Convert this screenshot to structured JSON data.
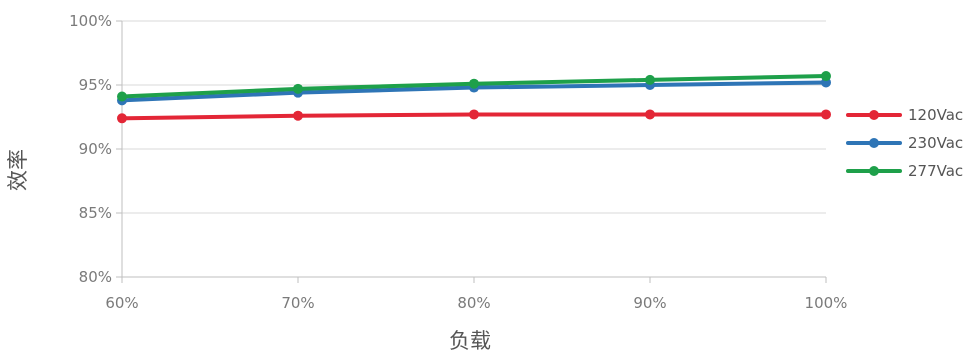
{
  "chart_data": {
    "type": "line",
    "title": "",
    "xlabel": "负载",
    "ylabel": "效率",
    "x": [
      "60%",
      "70%",
      "80%",
      "90%",
      "100%"
    ],
    "y_ticks": [
      "80%",
      "85%",
      "90%",
      "95%",
      "100%"
    ],
    "ylim": [
      80,
      100
    ],
    "grid": true,
    "legend_position": "right",
    "series": [
      {
        "name": "120Vac",
        "color": "#e32636",
        "values": [
          92.4,
          92.6,
          92.7,
          92.7,
          92.7
        ]
      },
      {
        "name": "230Vac",
        "color": "#2e75b6",
        "values": [
          93.8,
          94.4,
          94.8,
          95.0,
          95.2
        ]
      },
      {
        "name": "277Vac",
        "color": "#1ea04a",
        "values": [
          94.1,
          94.7,
          95.1,
          95.4,
          95.7
        ]
      }
    ]
  }
}
